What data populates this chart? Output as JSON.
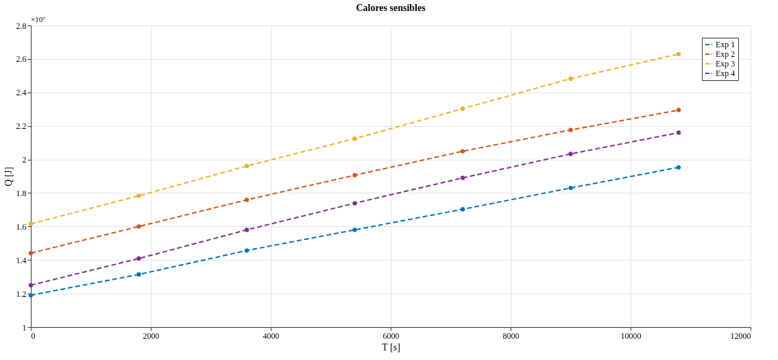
{
  "chart_data": {
    "type": "line",
    "title": "Calores sensibles",
    "xlabel": "T [s]",
    "ylabel": "Q [J]",
    "annotations": [
      "×10⁷"
    ],
    "x": [
      0,
      1800,
      3600,
      5400,
      7200,
      9000,
      10800
    ],
    "series": [
      {
        "name": "Exp 1",
        "color": "#0072bd",
        "values": [
          1.19,
          1.314,
          1.457,
          1.58,
          1.703,
          1.83,
          1.953
        ]
      },
      {
        "name": "Exp 2",
        "color": "#d95319",
        "values": [
          1.441,
          1.6,
          1.759,
          1.906,
          2.049,
          2.176,
          2.295
        ]
      },
      {
        "name": "Exp 3",
        "color": "#edb120",
        "values": [
          1.616,
          1.783,
          1.961,
          2.124,
          2.303,
          2.482,
          2.629
        ]
      },
      {
        "name": "Exp 4",
        "color": "#7e2f8e",
        "values": [
          1.25,
          1.409,
          1.58,
          1.739,
          1.89,
          2.033,
          2.16
        ]
      }
    ],
    "xlim": [
      0,
      12000
    ],
    "xticks": [
      0,
      2000,
      4000,
      6000,
      8000,
      10000,
      12000
    ],
    "ylim": [
      1,
      2.8
    ],
    "yticks": [
      1,
      1.2,
      1.4,
      1.6,
      1.8,
      2,
      2.2,
      2.4,
      2.6,
      2.8
    ],
    "grid": true,
    "legend": "top right",
    "marker": "circle",
    "line_style": "dashed"
  }
}
